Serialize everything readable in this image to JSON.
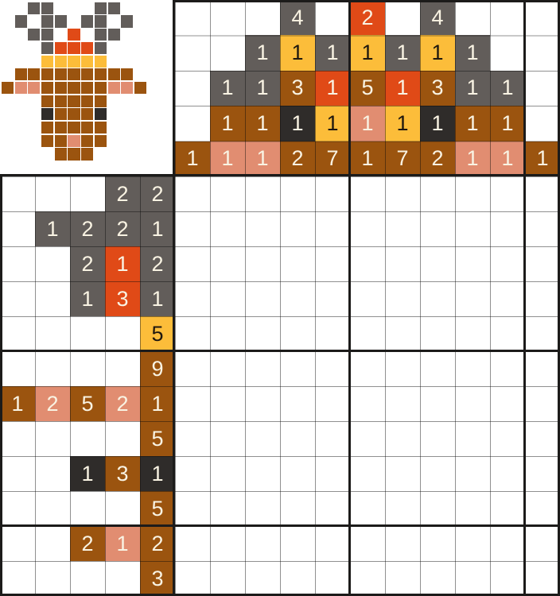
{
  "board": {
    "grid_cols": 11,
    "grid_rows": 12,
    "clue_rows": 5,
    "clue_cols": 5,
    "cell_size": 44,
    "clue_row_height": 44.4
  },
  "palette": {
    "gray": "#625D5A",
    "dark": "#2F2C2A",
    "brown": "#9B540F",
    "red": "#E04A17",
    "yellow": "#FCBD3A",
    "salmon": "#E18D71"
  },
  "text_colors": {
    "on_color": "#F9F3E3",
    "on_yellow": "#1F180F"
  },
  "line_colors": {
    "thin": "rgba(10,10,10,0.45)",
    "thick": "#1C1B1A"
  },
  "preview": {
    "legend": {
      "G": "gray",
      "D": "dark",
      "B": "brown",
      "R": "red",
      "Y": "yellow",
      "S": "salmon",
      ".": "empty"
    },
    "pixel_rows": [
      "..GG...GG..",
      ".G.GG.GG.G.",
      "..GG.R.GG..",
      "...GRRRG...",
      "...YYYYY...",
      ".BBBBBBBBB.",
      "BSSBBBBBSSB",
      "...BBBBB...",
      "...DBBBD...",
      "...BBBBB...",
      "...BBSBB...",
      "....BBB...."
    ]
  },
  "col_clues": [
    [
      {
        "n": 1,
        "c": "brown"
      }
    ],
    [
      {
        "n": 1,
        "c": "gray"
      },
      {
        "n": 1,
        "c": "brown"
      },
      {
        "n": 1,
        "c": "salmon"
      }
    ],
    [
      {
        "n": 1,
        "c": "gray"
      },
      {
        "n": 1,
        "c": "gray"
      },
      {
        "n": 1,
        "c": "brown"
      },
      {
        "n": 1,
        "c": "salmon"
      }
    ],
    [
      {
        "n": 4,
        "c": "gray"
      },
      {
        "n": 1,
        "c": "yellow"
      },
      {
        "n": 3,
        "c": "brown"
      },
      {
        "n": 1,
        "c": "dark"
      },
      {
        "n": 2,
        "c": "brown"
      }
    ],
    [
      {
        "n": 1,
        "c": "gray"
      },
      {
        "n": 1,
        "c": "red"
      },
      {
        "n": 1,
        "c": "yellow"
      },
      {
        "n": 7,
        "c": "brown"
      }
    ],
    [
      {
        "n": 2,
        "c": "red"
      },
      {
        "n": 1,
        "c": "yellow"
      },
      {
        "n": 5,
        "c": "brown"
      },
      {
        "n": 1,
        "c": "salmon"
      },
      {
        "n": 1,
        "c": "brown"
      }
    ],
    [
      {
        "n": 1,
        "c": "gray"
      },
      {
        "n": 1,
        "c": "red"
      },
      {
        "n": 1,
        "c": "yellow"
      },
      {
        "n": 7,
        "c": "brown"
      }
    ],
    [
      {
        "n": 4,
        "c": "gray"
      },
      {
        "n": 1,
        "c": "yellow"
      },
      {
        "n": 3,
        "c": "brown"
      },
      {
        "n": 1,
        "c": "dark"
      },
      {
        "n": 2,
        "c": "brown"
      }
    ],
    [
      {
        "n": 1,
        "c": "gray"
      },
      {
        "n": 1,
        "c": "gray"
      },
      {
        "n": 1,
        "c": "brown"
      },
      {
        "n": 1,
        "c": "salmon"
      }
    ],
    [
      {
        "n": 1,
        "c": "gray"
      },
      {
        "n": 1,
        "c": "brown"
      },
      {
        "n": 1,
        "c": "salmon"
      }
    ],
    [
      {
        "n": 1,
        "c": "brown"
      }
    ]
  ],
  "row_clues": [
    [
      {
        "n": 2,
        "c": "gray"
      },
      {
        "n": 2,
        "c": "gray"
      }
    ],
    [
      {
        "n": 1,
        "c": "gray"
      },
      {
        "n": 2,
        "c": "gray"
      },
      {
        "n": 2,
        "c": "gray"
      },
      {
        "n": 1,
        "c": "gray"
      }
    ],
    [
      {
        "n": 2,
        "c": "gray"
      },
      {
        "n": 1,
        "c": "red"
      },
      {
        "n": 2,
        "c": "gray"
      }
    ],
    [
      {
        "n": 1,
        "c": "gray"
      },
      {
        "n": 3,
        "c": "red"
      },
      {
        "n": 1,
        "c": "gray"
      }
    ],
    [
      {
        "n": 5,
        "c": "yellow"
      }
    ],
    [
      {
        "n": 9,
        "c": "brown"
      }
    ],
    [
      {
        "n": 1,
        "c": "brown"
      },
      {
        "n": 2,
        "c": "salmon"
      },
      {
        "n": 5,
        "c": "brown"
      },
      {
        "n": 2,
        "c": "salmon"
      },
      {
        "n": 1,
        "c": "brown"
      }
    ],
    [
      {
        "n": 5,
        "c": "brown"
      }
    ],
    [
      {
        "n": 1,
        "c": "dark"
      },
      {
        "n": 3,
        "c": "brown"
      },
      {
        "n": 1,
        "c": "dark"
      }
    ],
    [
      {
        "n": 5,
        "c": "brown"
      }
    ],
    [
      {
        "n": 2,
        "c": "brown"
      },
      {
        "n": 1,
        "c": "salmon"
      },
      {
        "n": 2,
        "c": "brown"
      }
    ],
    [
      {
        "n": 3,
        "c": "brown"
      }
    ]
  ]
}
